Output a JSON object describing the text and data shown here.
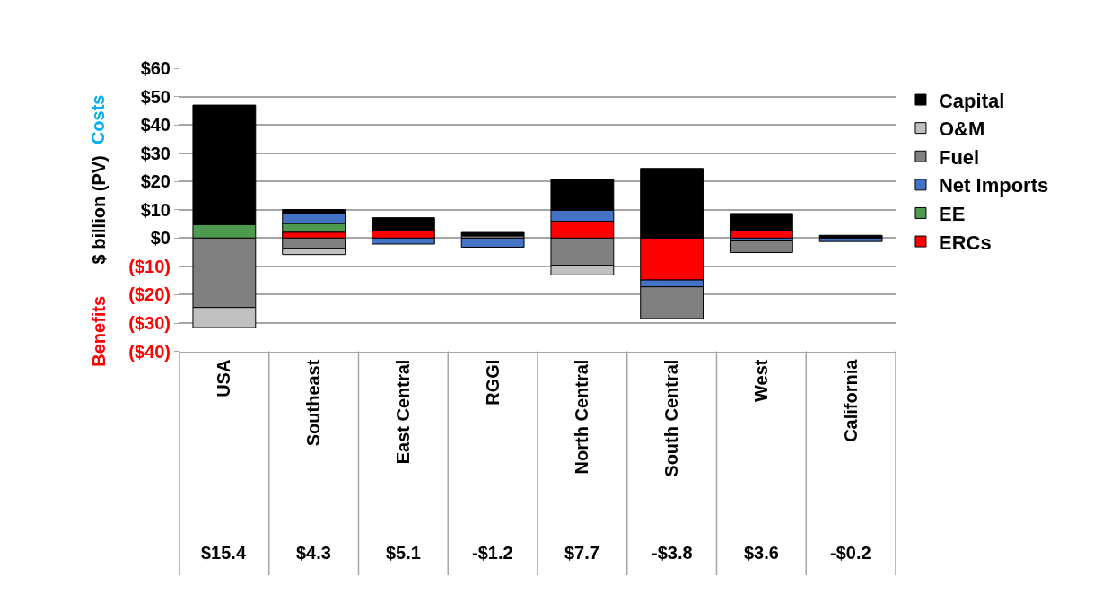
{
  "chart_data": {
    "type": "bar",
    "stacked": true,
    "ylabel": "$ billion (PV)",
    "annotations": [
      "Costs",
      "Benefits",
      "$15.4",
      "$4.3",
      "$5.1",
      "-$1.2",
      "$7.7",
      "-$3.8",
      "$3.6",
      "-$0.2"
    ],
    "categories": [
      "USA",
      "Southeast",
      "East Central",
      "RGGI",
      "North Central",
      "South Central",
      "West",
      "California"
    ],
    "series": [
      {
        "name": "ERCs",
        "color": "#ff0000",
        "values": [
          null,
          2.1,
          2.9,
          null,
          6.0,
          -14.8,
          2.6,
          null
        ]
      },
      {
        "name": "EE",
        "color": "#4e9a4e",
        "values": [
          4.8,
          3.1,
          null,
          null,
          null,
          null,
          null,
          null
        ]
      },
      {
        "name": "Net Imports",
        "color": "#4472c4",
        "values": [
          null,
          3.5,
          -2.1,
          -3.2,
          3.8,
          -2.4,
          -1.0,
          -1.2
        ]
      },
      {
        "name": "Fuel",
        "color": "#808080",
        "values": [
          -24.5,
          -3.6,
          null,
          0.8,
          -9.6,
          -11.2,
          -4.1,
          null
        ]
      },
      {
        "name": "O&M",
        "color": "#c0c0c0",
        "values": [
          -7.1,
          -2.2,
          null,
          null,
          -3.4,
          null,
          null,
          null
        ]
      },
      {
        "name": "Capital",
        "color": "#000000",
        "values": [
          42.2,
          1.4,
          4.3,
          1.2,
          10.9,
          24.6,
          6.1,
          1.0
        ]
      }
    ],
    "ylim": [
      -40,
      60
    ],
    "yticks": [
      {
        "value": 60,
        "label": "$60"
      },
      {
        "value": 50,
        "label": "$50"
      },
      {
        "value": 40,
        "label": "$40"
      },
      {
        "value": 30,
        "label": "$30"
      },
      {
        "value": 20,
        "label": "$20"
      },
      {
        "value": 10,
        "label": "$10"
      },
      {
        "value": 0,
        "label": "$0"
      },
      {
        "value": -10,
        "label": "($10)"
      },
      {
        "value": -20,
        "label": "($20)"
      },
      {
        "value": -30,
        "label": "($30)"
      },
      {
        "value": -40,
        "label": "($40)"
      }
    ],
    "grid": "y",
    "legend": "right"
  }
}
